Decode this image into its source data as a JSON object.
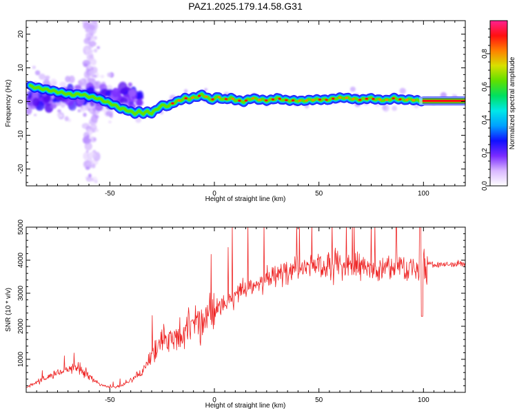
{
  "figure": {
    "title": "PAZ1.2025.179.14.58.G31"
  },
  "chart_data": [
    {
      "type": "heatmap",
      "xlabel": "Height of straight line (km)",
      "ylabel": "Frequency (Hz)",
      "xlim": [
        -90,
        120
      ],
      "ylim": [
        -25,
        24
      ],
      "xticks": [
        -50,
        0,
        50,
        100
      ],
      "yticks": [
        -20,
        -10,
        0,
        10,
        20
      ],
      "grid": false,
      "colorbar": {
        "label": "Normalized spectral amplitude",
        "ticks": [
          0.0,
          0.2,
          0.4,
          0.6,
          0.8
        ],
        "range": [
          0,
          1
        ],
        "colormap": [
          "#ffffff",
          "#d9b8ff",
          "#7a2bff",
          "#1010ff",
          "#00a0ff",
          "#00e8e8",
          "#00e060",
          "#60e000",
          "#d8e000",
          "#ff8000",
          "#ff1010",
          "#ff2090"
        ]
      },
      "ridge": {
        "description_series": "dominant frequency track",
        "x": [
          -88,
          -84,
          -80,
          -76,
          -72,
          -68,
          -64,
          -60,
          -56,
          -52,
          -48,
          -45,
          -42,
          -40,
          -38,
          -36,
          -34,
          -32,
          -30,
          -28,
          -26,
          -24,
          -22,
          -20,
          -18,
          -16,
          -14,
          -12,
          -10,
          -8,
          -6,
          -4,
          -2,
          0,
          2,
          4,
          6,
          8,
          10,
          14,
          18,
          22,
          26,
          30,
          34,
          38,
          42,
          46,
          50,
          54,
          58,
          62,
          66,
          70,
          74,
          78,
          82,
          86,
          90,
          94,
          98,
          100,
          120
        ],
        "y": [
          4.5,
          4,
          3.5,
          3,
          2.5,
          2,
          2.2,
          1.5,
          1,
          0,
          -1,
          -2,
          -2.5,
          -3,
          -3.5,
          -3,
          -3.5,
          -3,
          -3.5,
          -2.5,
          -1.5,
          -1,
          -1.5,
          -0.5,
          0,
          0.5,
          1,
          0.8,
          1.2,
          1.5,
          2,
          1.5,
          0.5,
          0.8,
          1.5,
          0.5,
          0.8,
          1,
          0.5,
          0,
          1,
          0.5,
          0.3,
          1,
          0.4,
          0.3,
          0.2,
          0.5,
          0.6,
          0.5,
          1,
          1.2,
          0.8,
          0.5,
          1,
          0.6,
          0.4,
          1,
          0.5,
          0.6,
          0.2,
          0.2,
          0.2
        ]
      }
    },
    {
      "type": "line",
      "xlabel": "Height of straight line (km)",
      "ylabel": "SNR (10 * v/v)",
      "xlim": [
        -90,
        120
      ],
      "ylim": [
        0,
        5000
      ],
      "xticks": [
        -50,
        0,
        50,
        100
      ],
      "yticks": [
        1000,
        2000,
        3000,
        4000,
        5000
      ],
      "grid": false,
      "series": [
        {
          "color": "#ee2222",
          "x": [
            -90,
            -85,
            -80,
            -75,
            -70,
            -65,
            -60,
            -55,
            -50,
            -45,
            -40,
            -35,
            -30,
            -25,
            -20,
            -15,
            -10,
            -5,
            0,
            5,
            10,
            15,
            20,
            25,
            30,
            35,
            40,
            45,
            50,
            55,
            60,
            65,
            70,
            75,
            80,
            85,
            90,
            95,
            98,
            100,
            105,
            110,
            115,
            120
          ],
          "y": [
            150,
            300,
            450,
            600,
            700,
            750,
            500,
            250,
            150,
            180,
            350,
            600,
            1100,
            1600,
            1700,
            1800,
            2100,
            2300,
            2400,
            2700,
            2900,
            3100,
            3300,
            3450,
            3550,
            3650,
            3750,
            3800,
            3850,
            3850,
            3850,
            3800,
            3800,
            3750,
            3750,
            3800,
            3800,
            3750,
            3600,
            3900,
            3850,
            3850,
            3900,
            3900
          ]
        }
      ]
    }
  ]
}
